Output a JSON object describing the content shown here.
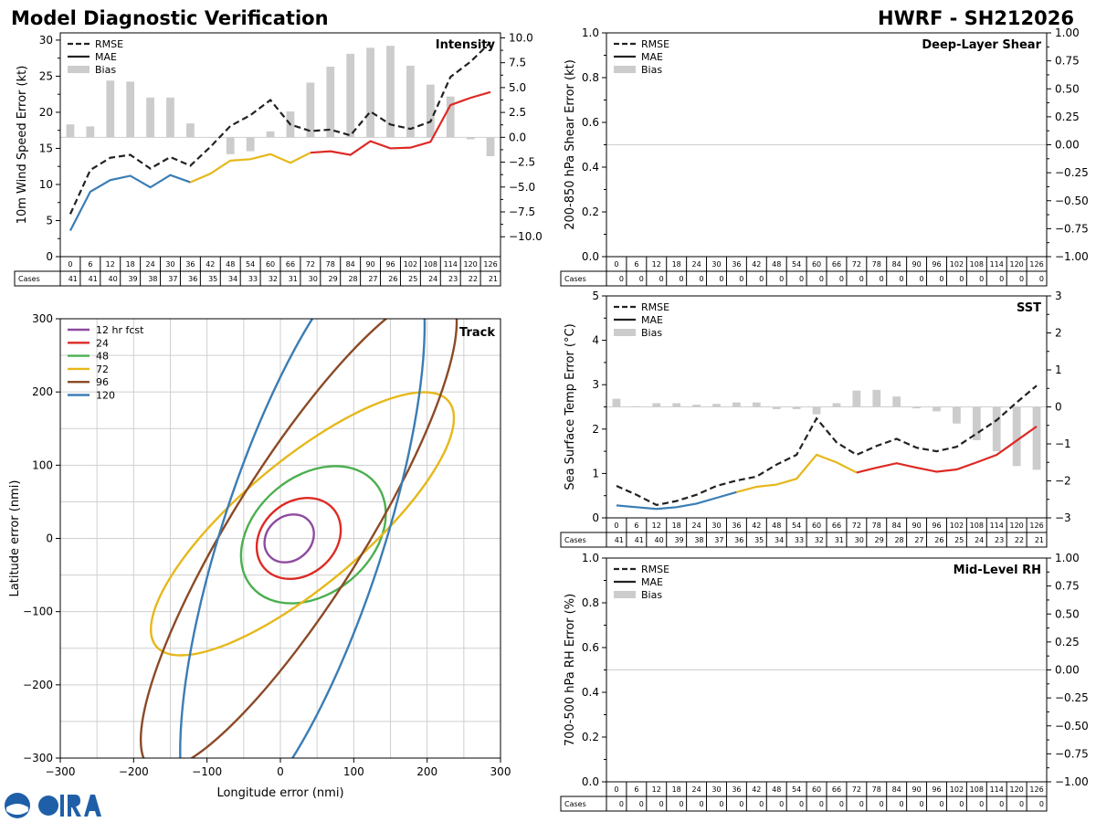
{
  "header": {
    "title": "Model Diagnostic Verification",
    "storm": "HWRF - SH212026"
  },
  "legend_labels": {
    "rmse": "RMSE",
    "mae": "MAE",
    "bias": "Bias"
  },
  "cases_label": "Cases",
  "colors": {
    "rmse": "#222222",
    "bias_bar": "#cccccc",
    "seg1": "#3a7db5",
    "seg2": "#e6b81a",
    "seg3": "#dd2a25",
    "track": [
      "#8e4aa0",
      "#dd2a25",
      "#4caf50",
      "#e6b81a",
      "#8b4a26",
      "#3a7db5"
    ]
  },
  "chart_data": [
    {
      "id": "intensity",
      "type": "line",
      "title": "Intensity",
      "ylabel": "10m Wind Speed Error (kt)",
      "ylim": [
        0,
        31
      ],
      "yticks": [
        0,
        5,
        10,
        15,
        20,
        25,
        30
      ],
      "y2lim": [
        -12,
        10.5
      ],
      "y2ticks": [
        -10.0,
        -7.5,
        -5.0,
        -2.5,
        0.0,
        2.5,
        5.0,
        7.5,
        10.0
      ],
      "hours": [
        0,
        6,
        12,
        18,
        24,
        30,
        36,
        42,
        48,
        54,
        60,
        66,
        72,
        78,
        84,
        90,
        96,
        102,
        108,
        114,
        120,
        126
      ],
      "cases": [
        41,
        41,
        40,
        39,
        38,
        37,
        36,
        35,
        34,
        33,
        32,
        31,
        30,
        29,
        28,
        27,
        26,
        25,
        24,
        23,
        22,
        21
      ],
      "series": [
        {
          "name": "RMSE",
          "values": [
            5.9,
            12.0,
            13.7,
            14.1,
            12.2,
            13.8,
            12.6,
            15.2,
            18.1,
            19.6,
            21.7,
            18.3,
            17.4,
            17.6,
            16.8,
            20.1,
            18.3,
            17.7,
            18.7,
            24.9,
            27.0,
            29.7
          ]
        },
        {
          "name": "MAE",
          "values": [
            3.6,
            9.0,
            10.6,
            11.2,
            9.6,
            11.3,
            10.3,
            11.5,
            13.3,
            13.5,
            14.2,
            13.0,
            14.4,
            14.6,
            14.1,
            16.0,
            15.0,
            15.1,
            15.9,
            21.0,
            22.0,
            22.8
          ]
        },
        {
          "name": "Bias",
          "values": [
            1.3,
            1.1,
            5.7,
            5.6,
            4.0,
            4.0,
            1.4,
            0.0,
            -1.7,
            -1.4,
            0.6,
            2.6,
            5.5,
            7.1,
            8.4,
            9.0,
            9.2,
            7.2,
            5.3,
            4.1,
            -0.2,
            -1.9
          ]
        }
      ],
      "segments": [
        [
          0,
          36
        ],
        [
          36,
          72
        ],
        [
          72,
          126
        ]
      ]
    },
    {
      "id": "shear",
      "type": "line",
      "title": "Deep-Layer Shear",
      "ylabel": "200-850 hPa Shear Error (kt)",
      "ylim": [
        0,
        1
      ],
      "yticks": [
        0.0,
        0.2,
        0.4,
        0.6,
        0.8,
        1.0
      ],
      "y2lim": [
        -1,
        1
      ],
      "y2ticks": [
        -1.0,
        -0.75,
        -0.5,
        -0.25,
        0.0,
        0.25,
        0.5,
        0.75,
        1.0
      ],
      "hours": [
        0,
        6,
        12,
        18,
        24,
        30,
        36,
        42,
        48,
        54,
        60,
        66,
        72,
        78,
        84,
        90,
        96,
        102,
        108,
        114,
        120,
        126
      ],
      "cases": [
        0,
        0,
        0,
        0,
        0,
        0,
        0,
        0,
        0,
        0,
        0,
        0,
        0,
        0,
        0,
        0,
        0,
        0,
        0,
        0,
        0,
        0
      ],
      "series": [],
      "segments": []
    },
    {
      "id": "sst",
      "type": "line",
      "title": "SST",
      "ylabel": "Sea Surface Temp Error (°C)",
      "ylim": [
        0,
        5
      ],
      "yticks": [
        0,
        1,
        2,
        3,
        4,
        5
      ],
      "y2lim": [
        -3,
        3
      ],
      "y2ticks": [
        -3,
        -2,
        -1,
        0,
        1,
        2,
        3
      ],
      "hours": [
        0,
        6,
        12,
        18,
        24,
        30,
        36,
        42,
        48,
        54,
        60,
        66,
        72,
        78,
        84,
        90,
        96,
        102,
        108,
        114,
        120,
        126
      ],
      "cases": [
        41,
        41,
        40,
        39,
        38,
        37,
        36,
        35,
        34,
        33,
        32,
        31,
        30,
        29,
        28,
        27,
        26,
        25,
        24,
        23,
        22,
        21
      ],
      "series": [
        {
          "name": "RMSE",
          "values": [
            0.72,
            0.52,
            0.29,
            0.38,
            0.52,
            0.72,
            0.84,
            0.93,
            1.2,
            1.42,
            2.24,
            1.7,
            1.42,
            1.62,
            1.78,
            1.58,
            1.5,
            1.6,
            1.9,
            2.2,
            2.6,
            2.98
          ]
        },
        {
          "name": "MAE",
          "values": [
            0.28,
            0.24,
            0.2,
            0.24,
            0.32,
            0.45,
            0.58,
            0.7,
            0.75,
            0.88,
            1.42,
            1.25,
            1.02,
            1.13,
            1.23,
            1.13,
            1.04,
            1.09,
            1.25,
            1.42,
            1.74,
            2.06
          ]
        },
        {
          "name": "Bias",
          "values": [
            0.22,
            0.02,
            0.1,
            0.1,
            0.06,
            0.08,
            0.12,
            0.12,
            -0.06,
            -0.06,
            -0.2,
            0.1,
            0.44,
            0.46,
            0.28,
            -0.04,
            -0.12,
            -0.45,
            -0.9,
            -1.2,
            -1.6,
            -1.7
          ]
        }
      ],
      "segments": [
        [
          0,
          36
        ],
        [
          36,
          72
        ],
        [
          72,
          126
        ]
      ]
    },
    {
      "id": "rh",
      "type": "line",
      "title": "Mid-Level RH",
      "ylabel": "700-500 hPa RH Error (%)",
      "ylim": [
        0,
        1
      ],
      "yticks": [
        0.0,
        0.2,
        0.4,
        0.6,
        0.8,
        1.0
      ],
      "y2lim": [
        -1,
        1
      ],
      "y2ticks": [
        -1.0,
        -0.75,
        -0.5,
        -0.25,
        0.0,
        0.25,
        0.5,
        0.75,
        1.0
      ],
      "hours": [
        0,
        6,
        12,
        18,
        24,
        30,
        36,
        42,
        48,
        54,
        60,
        66,
        72,
        78,
        84,
        90,
        96,
        102,
        108,
        114,
        120,
        126
      ],
      "cases": [
        0,
        0,
        0,
        0,
        0,
        0,
        0,
        0,
        0,
        0,
        0,
        0,
        0,
        0,
        0,
        0,
        0,
        0,
        0,
        0,
        0,
        0
      ],
      "series": [],
      "segments": []
    },
    {
      "id": "track",
      "type": "scatter",
      "title": "Track",
      "xlabel": "Longitude error (nmi)",
      "ylabel": "Latitude error (nmi)",
      "xlim": [
        -300,
        300
      ],
      "ylim": [
        -300,
        300
      ],
      "xticks": [
        -300,
        -200,
        -100,
        0,
        100,
        200,
        300
      ],
      "yticks": [
        -300,
        -200,
        -100,
        0,
        100,
        200,
        300
      ],
      "ellipses": [
        {
          "label": "12 hr fcst",
          "cx": 12,
          "cy": 0,
          "a": 36,
          "b": 30,
          "angle": -40
        },
        {
          "label": "24",
          "cx": 25,
          "cy": 0,
          "a": 62,
          "b": 50,
          "angle": -40
        },
        {
          "label": "48",
          "cx": 45,
          "cy": 5,
          "a": 110,
          "b": 80,
          "angle": -40
        },
        {
          "label": "72",
          "cx": 30,
          "cy": 20,
          "a": 260,
          "b": 85,
          "angle": -40
        },
        {
          "label": "96",
          "cx": 25,
          "cy": 10,
          "a": 380,
          "b": 90,
          "angle": -58
        },
        {
          "label": "120",
          "cx": 30,
          "cy": 0,
          "a": 420,
          "b": 110,
          "angle": -72
        }
      ]
    }
  ]
}
